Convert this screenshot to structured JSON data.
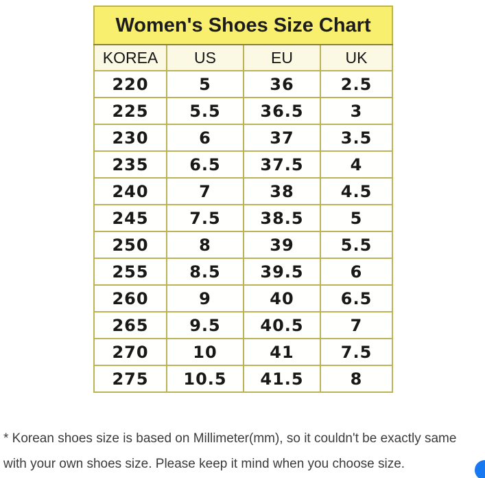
{
  "chart_data": {
    "type": "table",
    "title": "Women's Shoes Size Chart",
    "columns": [
      "KOREA",
      "US",
      "EU",
      "UK"
    ],
    "rows": [
      [
        "220",
        "5",
        "36",
        "2.5"
      ],
      [
        "225",
        "5.5",
        "36.5",
        "3"
      ],
      [
        "230",
        "6",
        "37",
        "3.5"
      ],
      [
        "235",
        "6.5",
        "37.5",
        "4"
      ],
      [
        "240",
        "7",
        "38",
        "4.5"
      ],
      [
        "245",
        "7.5",
        "38.5",
        "5"
      ],
      [
        "250",
        "8",
        "39",
        "5.5"
      ],
      [
        "255",
        "8.5",
        "39.5",
        "6"
      ],
      [
        "260",
        "9",
        "40",
        "6.5"
      ],
      [
        "265",
        "9.5",
        "40.5",
        "7"
      ],
      [
        "270",
        "10",
        "41",
        "7.5"
      ],
      [
        "275",
        "10.5",
        "41.5",
        "8"
      ]
    ],
    "layout": {
      "grid": true,
      "title_position": "top-merged-cell"
    }
  },
  "footnote": {
    "line1": "* Korean shoes size is based on Millimeter(mm), so it couldn't be exactly same",
    "line2": "with your own shoes size. Please keep it mind when you choose size."
  },
  "colors": {
    "title_bg": "#f9ef6e",
    "header_bg": "#fbf8e4",
    "cell_bg": "#fffffe",
    "border_inner": "#bdb254",
    "border_outer": "#968d30",
    "text": "#181818",
    "footnote_text": "#3b3b3b",
    "fab_blue": "#1878f0"
  }
}
